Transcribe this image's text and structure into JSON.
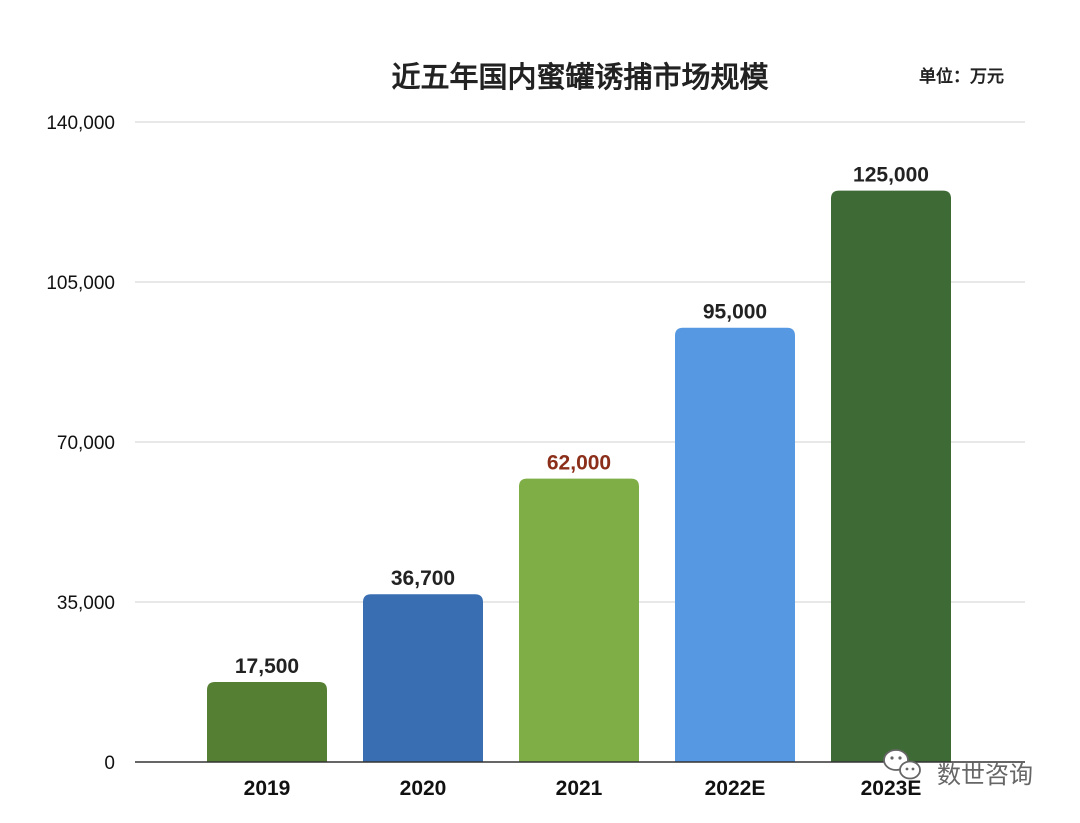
{
  "chart_data": {
    "type": "bar",
    "title": "近五年国内蜜罐诱捕市场规模",
    "unit_label": "单位：万元",
    "categories": [
      "2019",
      "2020",
      "2021",
      "2022E",
      "2023E"
    ],
    "values": [
      17500,
      36700,
      62000,
      95000,
      125000
    ],
    "value_labels": [
      "17,500",
      "36,700",
      "62,000",
      "95,000",
      "125,000"
    ],
    "bar_colors": [
      "#557f32",
      "#3a6eb2",
      "#7fae46",
      "#5699e2",
      "#3e6a36"
    ],
    "label_colors": [
      "#222222",
      "#222222",
      "#8b2f1a",
      "#222222",
      "#222222"
    ],
    "ylim": [
      0,
      140000
    ],
    "yticks": [
      0,
      35000,
      70000,
      105000,
      140000
    ],
    "ytick_labels": [
      "0",
      "35,000",
      "70,000",
      "105,000",
      "140,000"
    ],
    "xlabel": "",
    "ylabel": "",
    "grid": true,
    "legend": "none"
  },
  "watermark": {
    "text": "数世咨询",
    "icon": "wechat-icon"
  }
}
